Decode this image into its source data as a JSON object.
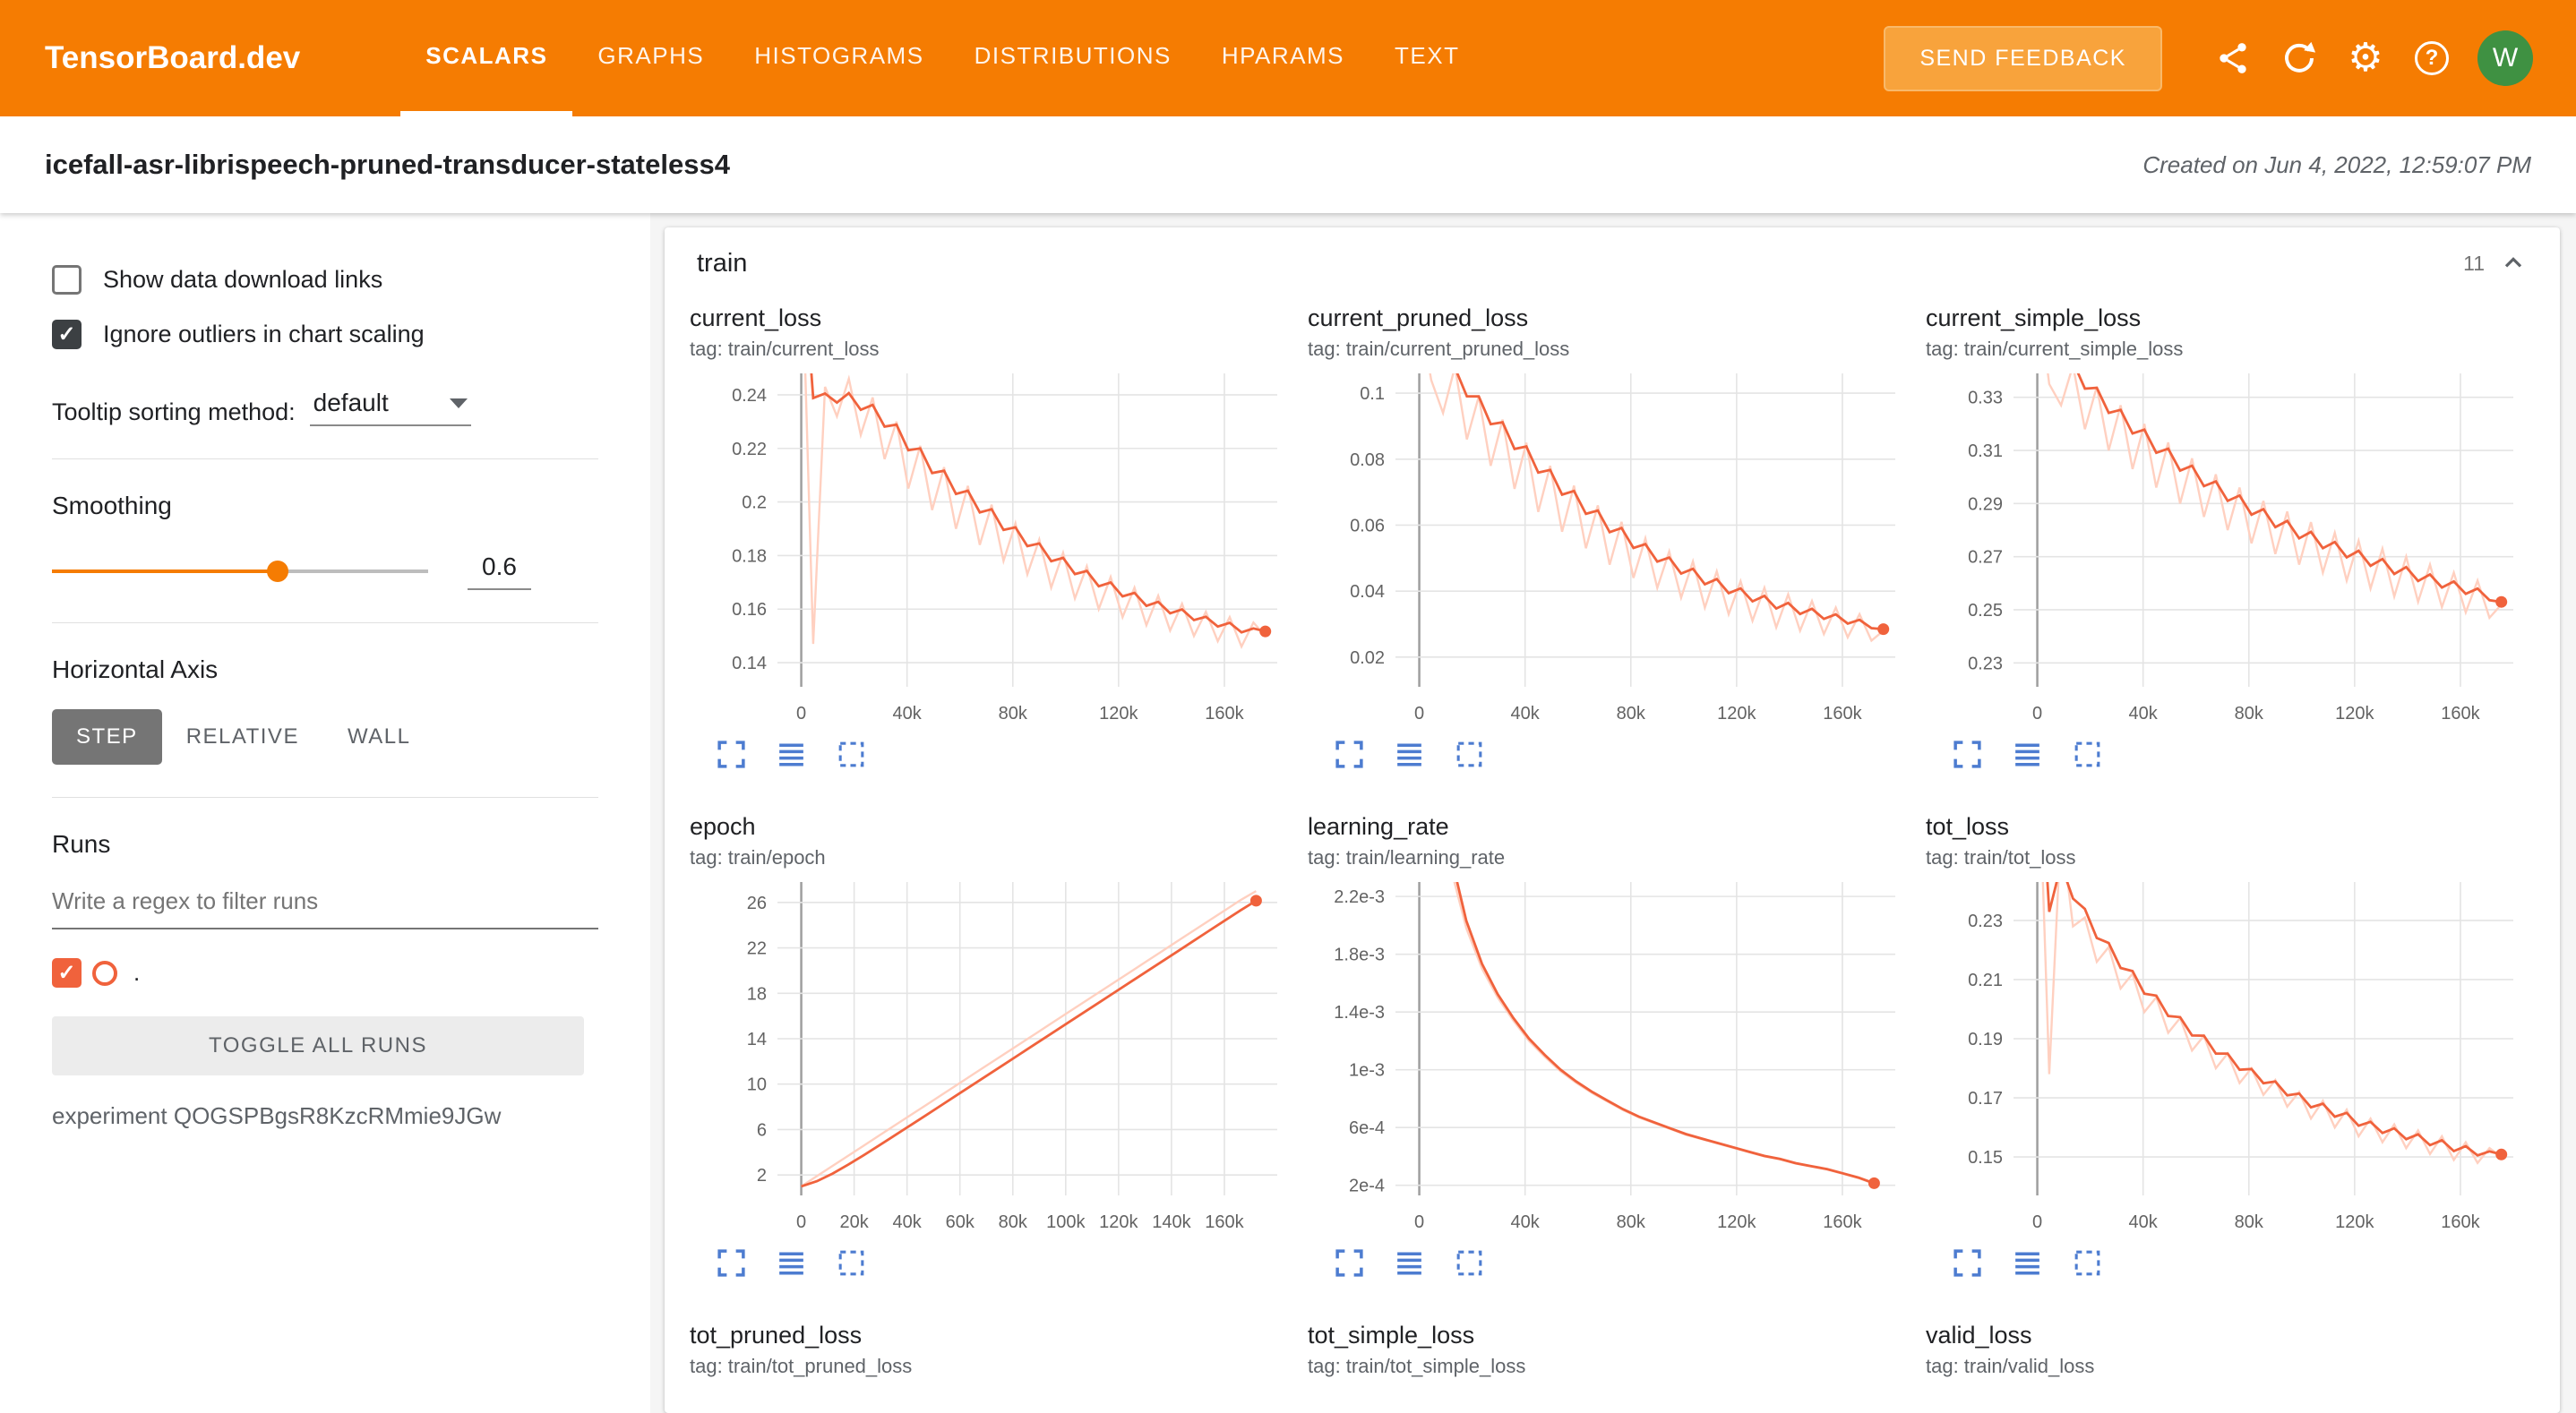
{
  "header": {
    "logo": "TensorBoard.dev",
    "tabs": [
      {
        "label": "SCALARS",
        "active": true
      },
      {
        "label": "GRAPHS",
        "active": false
      },
      {
        "label": "HISTOGRAMS",
        "active": false
      },
      {
        "label": "DISTRIBUTIONS",
        "active": false
      },
      {
        "label": "HPARAMS",
        "active": false
      },
      {
        "label": "TEXT",
        "active": false
      }
    ],
    "feedback_label": "SEND FEEDBACK",
    "avatar": "W"
  },
  "titlebar": {
    "title": "icefall-asr-librispeech-pruned-transducer-stateless4",
    "created": "Created on Jun 4, 2022, 12:59:07 PM"
  },
  "sidebar": {
    "show_download": {
      "label": "Show data download links",
      "checked": false
    },
    "ignore_outliers": {
      "label": "Ignore outliers in chart scaling",
      "checked": true
    },
    "tooltip_sorting": {
      "label": "Tooltip sorting method:",
      "value": "default"
    },
    "smoothing": {
      "label": "Smoothing",
      "value": "0.6"
    },
    "horizontal_axis": {
      "label": "Horizontal Axis",
      "options": [
        "STEP",
        "RELATIVE",
        "WALL"
      ],
      "selected": "STEP"
    },
    "runs": {
      "label": "Runs",
      "filter_placeholder": "Write a regex to filter runs",
      "run_name": ".",
      "run_checked": true,
      "toggle_all": "TOGGLE ALL RUNS",
      "experiment": "experiment QOGSPBgsR8KzcRMmie9JGw"
    }
  },
  "main": {
    "group": {
      "title": "train",
      "count": "11"
    }
  },
  "chart_style": {
    "smoothed_color": "#f0623c",
    "raw_color": "#ffd0c0",
    "grid_color": "#e4e4e4",
    "zero_line_color": "#9e9e9e",
    "action_icon_color": "#4d7cd0"
  },
  "chart_data": [
    {
      "name": "current_loss",
      "tag": "tag: train/current_loss",
      "type": "line",
      "x_start": 0,
      "x_end": 175500,
      "xlim": [
        -9000,
        180000
      ],
      "ylim": [
        0.131,
        0.248
      ],
      "xtick_vals": [
        0,
        40000,
        80000,
        120000,
        160000
      ],
      "xtick_labels": [
        "0",
        "40k",
        "80k",
        "120k",
        "160k"
      ],
      "ytick_vals": [
        0.14,
        0.16,
        0.18,
        0.2,
        0.22,
        0.24
      ],
      "ytick_labels": [
        "0.14",
        "0.16",
        "0.18",
        "0.2",
        "0.22",
        "0.24"
      ],
      "smooth_weight": 0.6,
      "values": [
        0.3,
        0.147,
        0.243,
        0.232,
        0.246,
        0.225,
        0.239,
        0.216,
        0.23,
        0.205,
        0.221,
        0.197,
        0.213,
        0.19,
        0.206,
        0.184,
        0.199,
        0.178,
        0.192,
        0.173,
        0.186,
        0.168,
        0.181,
        0.164,
        0.176,
        0.16,
        0.172,
        0.157,
        0.168,
        0.154,
        0.165,
        0.152,
        0.162,
        0.15,
        0.159,
        0.148,
        0.157,
        0.146,
        0.155,
        0.15
      ]
    },
    {
      "name": "current_pruned_loss",
      "tag": "tag: train/current_pruned_loss",
      "type": "line",
      "x_start": 0,
      "x_end": 175500,
      "xlim": [
        -9000,
        180000
      ],
      "ylim": [
        0.011,
        0.106
      ],
      "xtick_vals": [
        0,
        40000,
        80000,
        120000,
        160000
      ],
      "xtick_labels": [
        "0",
        "40k",
        "80k",
        "120k",
        "160k"
      ],
      "ytick_vals": [
        0.02,
        0.04,
        0.06,
        0.08,
        0.1
      ],
      "ytick_labels": [
        "0.02",
        "0.04",
        "0.06",
        "0.08",
        "0.1"
      ],
      "smooth_weight": 0.6,
      "values": [
        0.125,
        0.104,
        0.094,
        0.108,
        0.086,
        0.099,
        0.078,
        0.092,
        0.071,
        0.085,
        0.064,
        0.078,
        0.058,
        0.072,
        0.053,
        0.066,
        0.048,
        0.061,
        0.044,
        0.056,
        0.041,
        0.052,
        0.038,
        0.049,
        0.035,
        0.046,
        0.033,
        0.043,
        0.031,
        0.041,
        0.029,
        0.039,
        0.028,
        0.037,
        0.027,
        0.035,
        0.026,
        0.033,
        0.025,
        0.028
      ]
    },
    {
      "name": "current_simple_loss",
      "tag": "tag: train/current_simple_loss",
      "type": "line",
      "x_start": 0,
      "x_end": 175500,
      "xlim": [
        -9000,
        180000
      ],
      "ylim": [
        0.221,
        0.339
      ],
      "xtick_vals": [
        0,
        40000,
        80000,
        120000,
        160000
      ],
      "xtick_labels": [
        "0",
        "40k",
        "80k",
        "120k",
        "160k"
      ],
      "ytick_vals": [
        0.23,
        0.25,
        0.27,
        0.29,
        0.31,
        0.33
      ],
      "ytick_labels": [
        "0.23",
        "0.25",
        "0.27",
        "0.29",
        "0.31",
        "0.33"
      ],
      "smooth_weight": 0.6,
      "values": [
        0.37,
        0.335,
        0.327,
        0.342,
        0.318,
        0.334,
        0.31,
        0.327,
        0.303,
        0.32,
        0.296,
        0.313,
        0.29,
        0.307,
        0.285,
        0.301,
        0.28,
        0.296,
        0.275,
        0.291,
        0.271,
        0.287,
        0.267,
        0.283,
        0.264,
        0.279,
        0.261,
        0.276,
        0.258,
        0.273,
        0.255,
        0.27,
        0.253,
        0.267,
        0.251,
        0.264,
        0.249,
        0.261,
        0.247,
        0.252
      ]
    },
    {
      "name": "epoch",
      "tag": "tag: train/epoch",
      "type": "line",
      "x_start": 0,
      "x_end": 172000,
      "xlim": [
        -9000,
        180000
      ],
      "ylim": [
        0.2,
        27.8
      ],
      "xtick_vals": [
        0,
        20000,
        40000,
        60000,
        80000,
        100000,
        120000,
        140000,
        160000
      ],
      "xtick_labels": [
        "0",
        "20k",
        "40k",
        "60k",
        "80k",
        "100k",
        "120k",
        "140k",
        "160k"
      ],
      "ytick_vals": [
        2,
        6,
        10,
        14,
        18,
        22,
        26
      ],
      "ytick_labels": [
        "2",
        "6",
        "10",
        "14",
        "18",
        "22",
        "26"
      ],
      "smooth_weight": 0.5,
      "values": [
        1.0,
        1.9,
        2.8,
        3.7,
        4.6,
        5.5,
        6.4,
        7.3,
        8.2,
        9.1,
        10.0,
        10.9,
        11.8,
        12.7,
        13.6,
        14.5,
        15.4,
        16.3,
        17.2,
        18.1,
        19.0,
        19.9,
        20.8,
        21.7,
        22.6,
        23.5,
        24.4,
        25.3,
        26.2,
        27.0
      ]
    },
    {
      "name": "learning_rate",
      "tag": "tag: train/learning_rate",
      "type": "line",
      "x_start": 0,
      "x_end": 172000,
      "xlim": [
        -9000,
        180000
      ],
      "ylim": [
        0.00013,
        0.0023
      ],
      "xtick_vals": [
        0,
        40000,
        80000,
        120000,
        160000
      ],
      "xtick_labels": [
        "0",
        "40k",
        "80k",
        "120k",
        "160k"
      ],
      "ytick_vals": [
        0.0002,
        0.0006,
        0.001,
        0.0014,
        0.0018,
        0.0022
      ],
      "ytick_labels": [
        "2e-4",
        "6e-4",
        "1e-3",
        "1.4e-3",
        "1.8e-3",
        "2.2e-3"
      ],
      "smooth_weight": 0.1,
      "values": [
        0.005,
        0.0031,
        0.0024,
        0.00198,
        0.0017,
        0.0015,
        0.00134,
        0.0012,
        0.00109,
        0.00099,
        0.00091,
        0.00084,
        0.00078,
        0.00072,
        0.00067,
        0.00063,
        0.00059,
        0.00055,
        0.00052,
        0.00049,
        0.00046,
        0.00043,
        0.0004,
        0.00038,
        0.00035,
        0.00033,
        0.00031,
        0.00028,
        0.00025,
        0.00021
      ]
    },
    {
      "name": "tot_loss",
      "tag": "tag: train/tot_loss",
      "type": "line",
      "x_start": 0,
      "x_end": 175500,
      "xlim": [
        -9000,
        180000
      ],
      "ylim": [
        0.137,
        0.243
      ],
      "xtick_vals": [
        0,
        40000,
        80000,
        120000,
        160000
      ],
      "xtick_labels": [
        "0",
        "40k",
        "80k",
        "120k",
        "160k"
      ],
      "ytick_vals": [
        0.15,
        0.17,
        0.19,
        0.21,
        0.23
      ],
      "ytick_labels": [
        "0.15",
        "0.17",
        "0.19",
        "0.21",
        "0.23"
      ],
      "smooth_weight": 0.45,
      "values": [
        0.3,
        0.178,
        0.262,
        0.228,
        0.231,
        0.216,
        0.221,
        0.207,
        0.212,
        0.199,
        0.204,
        0.192,
        0.197,
        0.186,
        0.191,
        0.18,
        0.185,
        0.175,
        0.18,
        0.171,
        0.176,
        0.167,
        0.172,
        0.163,
        0.169,
        0.16,
        0.166,
        0.157,
        0.163,
        0.155,
        0.161,
        0.153,
        0.159,
        0.151,
        0.157,
        0.149,
        0.155,
        0.148,
        0.153,
        0.15
      ]
    },
    {
      "name": "tot_pruned_loss",
      "tag": "tag: train/tot_pruned_loss",
      "type": "line",
      "partial": true
    },
    {
      "name": "tot_simple_loss",
      "tag": "tag: train/tot_simple_loss",
      "type": "line",
      "partial": true
    },
    {
      "name": "valid_loss",
      "tag": "tag: train/valid_loss",
      "type": "line",
      "partial": true
    }
  ]
}
